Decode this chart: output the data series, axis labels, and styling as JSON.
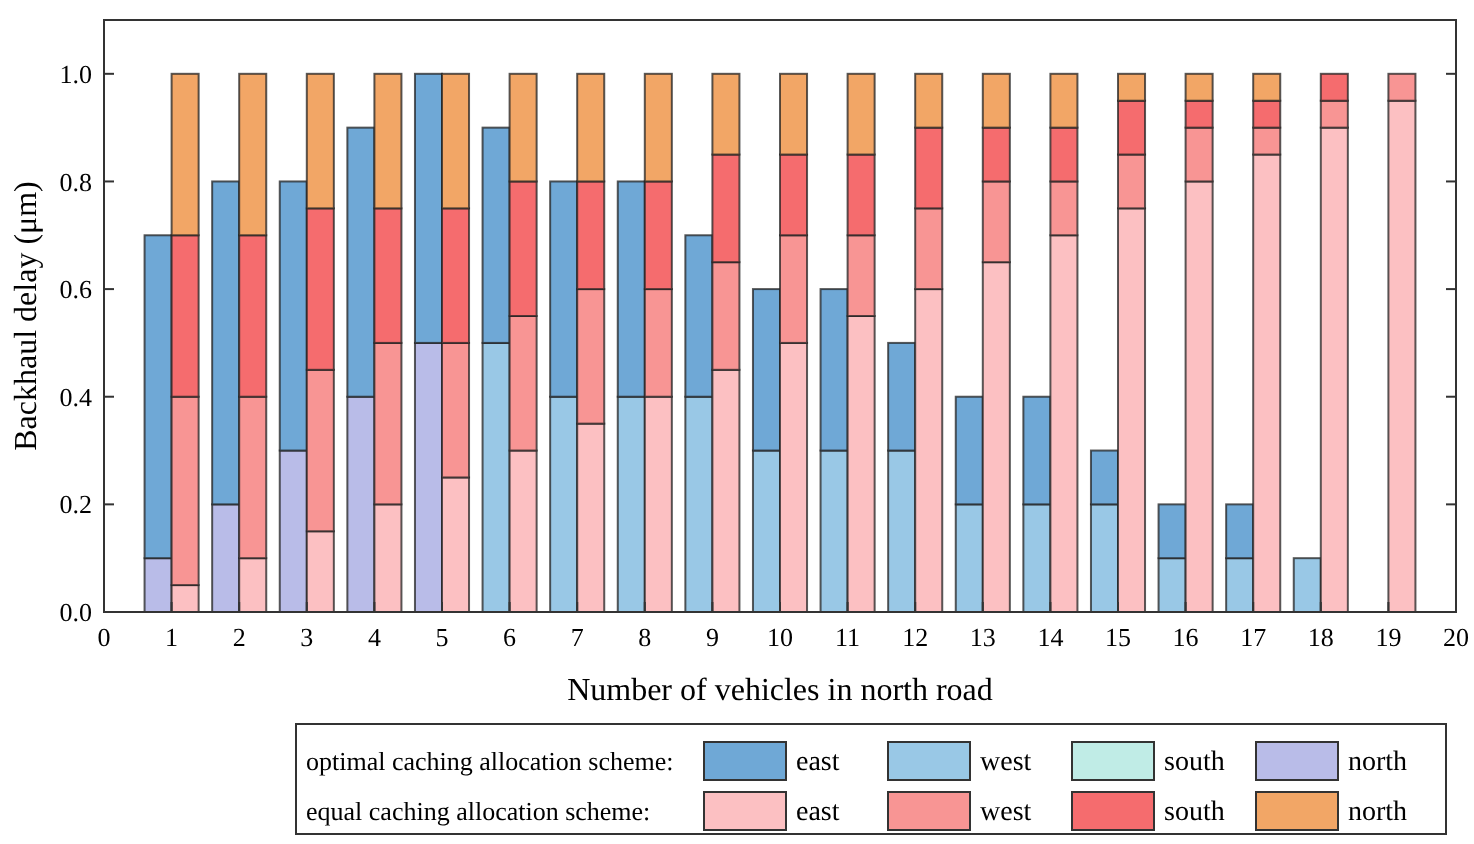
{
  "chart_data": {
    "type": "bar",
    "xlabel": "Number of vehicles in north road",
    "ylabel": "Backhaul delay (μm)",
    "xlim": [
      0,
      20
    ],
    "xticks": [
      0,
      1,
      2,
      3,
      4,
      5,
      6,
      7,
      8,
      9,
      10,
      11,
      12,
      13,
      14,
      15,
      16,
      17,
      18,
      19,
      20
    ],
    "ylim": [
      0,
      1.1
    ],
    "yticks": [
      {
        "value": 0,
        "label": "0.0"
      },
      {
        "value": 0.2,
        "label": "0.2"
      },
      {
        "value": 0.4,
        "label": "0.4"
      },
      {
        "value": 0.6,
        "label": "0.6"
      },
      {
        "value": 0.8,
        "label": "0.8"
      },
      {
        "value": 1,
        "label": "1.0"
      }
    ],
    "legend": "bottom",
    "annotations": [
      "optimal caching allocation scheme:",
      "equal caching allocation scheme:"
    ],
    "series": [
      {
        "name": "north",
        "color": "#b9bce8",
        "x": [
          0.8,
          1.8,
          2.8,
          3.8,
          4.8
        ],
        "base": [
          0,
          0,
          0,
          0,
          0
        ],
        "values": [
          0.1,
          0.2,
          0.3,
          0.4,
          0.5
        ]
      },
      {
        "name": "west",
        "color": "#99c8e6",
        "x": [
          5.8,
          6.8,
          7.8,
          8.8,
          9.8,
          10.8,
          11.8,
          12.8,
          13.8,
          14.8,
          15.8,
          16.8,
          17.8
        ],
        "base": [
          0,
          0,
          0,
          0,
          0,
          0,
          0,
          0,
          0,
          0,
          0,
          0,
          0
        ],
        "values": [
          0.5,
          0.4,
          0.4,
          0.4,
          0.3,
          0.3,
          0.3,
          0.2,
          0.2,
          0.2,
          0.1,
          0.1,
          0.1
        ]
      },
      {
        "name": "south",
        "color": "#c0ece6"
      },
      {
        "name": "east",
        "color": "#6fa8d6",
        "x": [
          0.8,
          1.8,
          2.8,
          3.8,
          4.8,
          5.8,
          6.8,
          7.8,
          8.8,
          9.8,
          10.8,
          11.8,
          12.8,
          13.8,
          14.8,
          15.8,
          16.8
        ],
        "base": [
          0.1,
          0.2,
          0.3,
          0.4,
          0.5,
          0.5,
          0.4,
          0.4,
          0.4,
          0.3,
          0.3,
          0.3,
          0.2,
          0.2,
          0.2,
          0.1,
          0.1
        ],
        "values": [
          0.6,
          0.6,
          0.5,
          0.5,
          0.5,
          0.4,
          0.4,
          0.4,
          0.3,
          0.3,
          0.3,
          0.2,
          0.2,
          0.2,
          0.1,
          0.1,
          0.1
        ]
      },
      {
        "name": "east",
        "color": "#fcc0c2",
        "x": [
          1.2,
          2.2,
          3.2,
          4.2,
          5.2,
          6.2,
          7.2,
          8.2,
          9.2,
          10.2,
          11.2,
          12.2,
          13.2,
          14.2,
          15.2,
          16.2,
          17.2,
          18.2,
          19.2
        ],
        "base": [
          0,
          0,
          0,
          0,
          0,
          0,
          0,
          0,
          0,
          0,
          0,
          0,
          0,
          0,
          0,
          0,
          0,
          0,
          0
        ],
        "values": [
          0.05,
          0.1,
          0.15,
          0.2,
          0.25,
          0.3,
          0.35,
          0.4,
          0.45,
          0.5,
          0.55,
          0.6,
          0.65,
          0.7,
          0.75,
          0.8,
          0.85,
          0.9,
          0.95
        ]
      },
      {
        "name": "west",
        "color": "#f89594",
        "x": [
          1.2,
          2.2,
          3.2,
          4.2,
          5.2,
          6.2,
          7.2,
          8.2,
          9.2,
          10.2,
          11.2,
          12.2,
          13.2,
          14.2,
          15.2,
          16.2,
          17.2,
          18.2,
          19.2
        ],
        "base": [
          0.05,
          0.1,
          0.15,
          0.2,
          0.25,
          0.3,
          0.35,
          0.4,
          0.45,
          0.5,
          0.55,
          0.6,
          0.65,
          0.7,
          0.75,
          0.8,
          0.85,
          0.9,
          0.95
        ],
        "values": [
          0.35,
          0.3,
          0.3,
          0.3,
          0.25,
          0.25,
          0.25,
          0.2,
          0.2,
          0.2,
          0.15,
          0.15,
          0.15,
          0.1,
          0.1,
          0.1,
          0.05,
          0.05,
          0.05
        ]
      },
      {
        "name": "south",
        "color": "#f56c6e",
        "x": [
          1.2,
          2.2,
          3.2,
          4.2,
          5.2,
          6.2,
          7.2,
          8.2,
          9.2,
          10.2,
          11.2,
          12.2,
          13.2,
          14.2,
          15.2,
          16.2,
          17.2,
          18.2
        ],
        "base": [
          0.4,
          0.4,
          0.45,
          0.5,
          0.5,
          0.55,
          0.6,
          0.6,
          0.65,
          0.7,
          0.7,
          0.75,
          0.8,
          0.8,
          0.85,
          0.9,
          0.9,
          0.95
        ],
        "values": [
          0.3,
          0.3,
          0.3,
          0.25,
          0.25,
          0.25,
          0.2,
          0.2,
          0.2,
          0.15,
          0.15,
          0.15,
          0.1,
          0.1,
          0.1,
          0.05,
          0.05,
          0.05
        ]
      },
      {
        "name": "north",
        "color": "#f2a666",
        "x": [
          1.2,
          2.2,
          3.2,
          4.2,
          5.2,
          6.2,
          7.2,
          8.2,
          9.2,
          10.2,
          11.2,
          12.2,
          13.2,
          14.2,
          15.2,
          16.2,
          17.2
        ],
        "base": [
          0.7,
          0.7,
          0.75,
          0.75,
          0.75,
          0.8,
          0.8,
          0.8,
          0.85,
          0.85,
          0.85,
          0.9,
          0.9,
          0.9,
          0.95,
          0.95,
          0.95
        ],
        "values": [
          0.3,
          0.3,
          0.25,
          0.25,
          0.25,
          0.2,
          0.2,
          0.2,
          0.15,
          0.15,
          0.15,
          0.1,
          0.1,
          0.1,
          0.05,
          0.05,
          0.05
        ]
      }
    ]
  }
}
